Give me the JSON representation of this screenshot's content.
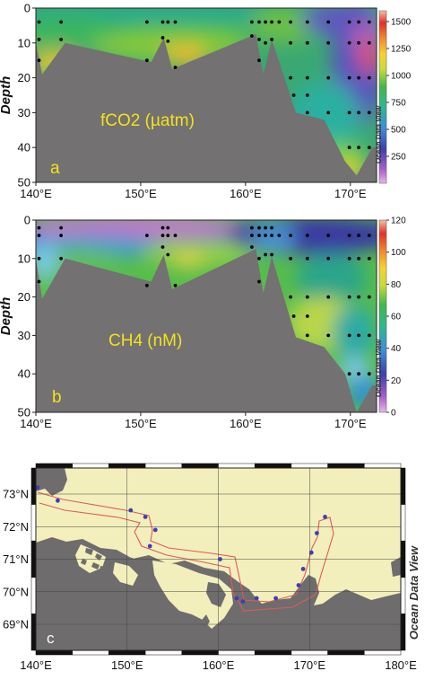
{
  "chart_data": [
    {
      "panel": "a",
      "type": "heatmap",
      "title": "",
      "annotation": "fCO2 (µatm)",
      "panel_letter": "a",
      "ylabel": "Depth",
      "xlabel": "",
      "xlim": [
        140,
        172.5
      ],
      "ylim": [
        0,
        50
      ],
      "x_ticks": [
        "140°E",
        "150°E",
        "160°E",
        "170°E"
      ],
      "y_ticks": [
        "0",
        "10",
        "20",
        "30",
        "40",
        "50"
      ],
      "colorbar": {
        "ticks": [
          "1500",
          "1250",
          "1000",
          "750",
          "500",
          "250"
        ],
        "range": [
          0,
          1600
        ],
        "brand": "Ocean Data View"
      },
      "seafloor": [
        [
          140,
          10
        ],
        [
          140.6,
          19
        ],
        [
          142.8,
          10
        ],
        [
          151,
          15.5
        ],
        [
          152.2,
          8.5
        ],
        [
          153,
          17.5
        ],
        [
          161,
          7.5
        ],
        [
          161.7,
          19
        ],
        [
          162.5,
          9
        ],
        [
          164.8,
          30
        ],
        [
          167.5,
          32
        ],
        [
          169.5,
          44
        ],
        [
          170.6,
          48
        ],
        [
          172.1,
          40
        ]
      ],
      "samples": [
        [
          140.3,
          4
        ],
        [
          140.3,
          9
        ],
        [
          140.3,
          15
        ],
        [
          142.4,
          4
        ],
        [
          142.4,
          9
        ],
        [
          150.6,
          4
        ],
        [
          150.6,
          15
        ],
        [
          152.1,
          4
        ],
        [
          152.1,
          8.5
        ],
        [
          152.6,
          4
        ],
        [
          152.6,
          9.5
        ],
        [
          153.3,
          4
        ],
        [
          153.3,
          17
        ],
        [
          160.6,
          4
        ],
        [
          160.6,
          8
        ],
        [
          161.3,
          4
        ],
        [
          161.3,
          9
        ],
        [
          161.3,
          15
        ],
        [
          161.9,
          4
        ],
        [
          161.9,
          10
        ],
        [
          162.5,
          4
        ],
        [
          162.5,
          9
        ],
        [
          163.2,
          4
        ],
        [
          164.3,
          4
        ],
        [
          164.3,
          10
        ],
        [
          164.3,
          20
        ],
        [
          164.6,
          25
        ],
        [
          165.9,
          4
        ],
        [
          165.9,
          10
        ],
        [
          165.9,
          20
        ],
        [
          165.9,
          25
        ],
        [
          165.9,
          30
        ],
        [
          167.9,
          4
        ],
        [
          167.9,
          10
        ],
        [
          167.9,
          20
        ],
        [
          167.9,
          30
        ],
        [
          169.9,
          4
        ],
        [
          169.9,
          10
        ],
        [
          169.9,
          20
        ],
        [
          169.9,
          30
        ],
        [
          169.9,
          40
        ],
        [
          170.8,
          4
        ],
        [
          170.8,
          10
        ],
        [
          170.8,
          20
        ],
        [
          170.8,
          30
        ],
        [
          170.8,
          40
        ],
        [
          171.8,
          4
        ],
        [
          171.8,
          10
        ],
        [
          171.8,
          20
        ],
        [
          171.8,
          30
        ],
        [
          171.8,
          40
        ]
      ]
    },
    {
      "panel": "b",
      "type": "heatmap",
      "title": "",
      "annotation": "CH4 (nM)",
      "panel_letter": "b",
      "ylabel": "Depth",
      "xlabel": "",
      "xlim": [
        140,
        172.5
      ],
      "ylim": [
        0,
        50
      ],
      "x_ticks": [
        "140°E",
        "150°E",
        "160°E",
        "170°E"
      ],
      "y_ticks": [
        "0",
        "10",
        "20",
        "30",
        "40",
        "50"
      ],
      "colorbar": {
        "ticks": [
          "120",
          "100",
          "80",
          "60",
          "40",
          "20",
          "0"
        ],
        "range": [
          0,
          120
        ],
        "brand": "Ocean Data View"
      },
      "seafloor": [
        [
          140,
          10
        ],
        [
          140.6,
          20.5
        ],
        [
          142.8,
          10
        ],
        [
          151,
          16
        ],
        [
          152.2,
          9
        ],
        [
          153,
          18
        ],
        [
          161,
          7.5
        ],
        [
          161.7,
          19
        ],
        [
          162.5,
          9.5
        ],
        [
          164.8,
          30.5
        ],
        [
          167.5,
          33
        ],
        [
          169.5,
          40
        ],
        [
          170.6,
          50
        ],
        [
          172.1,
          43
        ]
      ],
      "samples": [
        [
          140.3,
          2
        ],
        [
          140.3,
          4
        ],
        [
          140.3,
          10
        ],
        [
          140.3,
          16
        ],
        [
          142.4,
          2
        ],
        [
          142.4,
          4
        ],
        [
          142.4,
          10
        ],
        [
          150.6,
          4
        ],
        [
          150.6,
          17
        ],
        [
          152.1,
          2
        ],
        [
          152.1,
          4
        ],
        [
          152.1,
          7
        ],
        [
          152.6,
          2
        ],
        [
          152.6,
          4
        ],
        [
          152.6,
          9
        ],
        [
          153.3,
          4
        ],
        [
          153.3,
          17
        ],
        [
          160.6,
          2
        ],
        [
          160.6,
          4
        ],
        [
          160.6,
          7
        ],
        [
          161.3,
          2
        ],
        [
          161.3,
          4
        ],
        [
          161.3,
          10
        ],
        [
          161.3,
          16
        ],
        [
          161.9,
          2
        ],
        [
          161.9,
          4
        ],
        [
          161.9,
          9
        ],
        [
          162.5,
          2
        ],
        [
          162.5,
          4
        ],
        [
          162.5,
          9
        ],
        [
          163.2,
          4
        ],
        [
          164.3,
          4
        ],
        [
          164.3,
          10
        ],
        [
          164.3,
          20
        ],
        [
          164.6,
          25
        ],
        [
          165.9,
          4
        ],
        [
          165.9,
          10
        ],
        [
          165.9,
          20
        ],
        [
          165.9,
          25
        ],
        [
          165.9,
          30
        ],
        [
          167.9,
          4
        ],
        [
          167.9,
          10
        ],
        [
          167.9,
          20
        ],
        [
          167.9,
          30
        ],
        [
          169.9,
          4
        ],
        [
          169.9,
          10
        ],
        [
          169.9,
          20
        ],
        [
          169.9,
          30
        ],
        [
          169.9,
          40
        ],
        [
          170.8,
          4
        ],
        [
          170.8,
          10
        ],
        [
          170.8,
          20
        ],
        [
          170.8,
          30
        ],
        [
          170.8,
          40
        ],
        [
          171.8,
          4
        ],
        [
          171.8,
          10
        ],
        [
          171.8,
          20
        ],
        [
          171.8,
          30
        ],
        [
          171.8,
          40
        ]
      ]
    },
    {
      "panel": "c",
      "type": "scatter",
      "title": "",
      "panel_letter": "c",
      "xlabel": "",
      "ylabel": "",
      "xlim": [
        140,
        180
      ],
      "ylim": [
        68.2,
        73.8
      ],
      "x_ticks": [
        "140°E",
        "150°E",
        "160°E",
        "170°E",
        "180°E"
      ],
      "y_ticks": [
        "73°N",
        "72°N",
        "71°N",
        "70°N",
        "69°N"
      ],
      "brand": "Ocean Data View",
      "grid": true,
      "stations": [
        [
          140.2,
          73.2
        ],
        [
          142.4,
          72.8
        ],
        [
          150.4,
          72.5
        ],
        [
          152.0,
          72.3
        ],
        [
          153.1,
          71.9
        ],
        [
          152.5,
          71.4
        ],
        [
          160.2,
          71.0
        ],
        [
          162.0,
          69.8
        ],
        [
          162.7,
          69.7
        ],
        [
          164.2,
          69.8
        ],
        [
          166.3,
          69.8
        ],
        [
          168.8,
          70.2
        ],
        [
          169.3,
          70.7
        ],
        [
          170.2,
          71.2
        ],
        [
          170.8,
          71.8
        ],
        [
          171.7,
          72.3
        ]
      ]
    }
  ]
}
